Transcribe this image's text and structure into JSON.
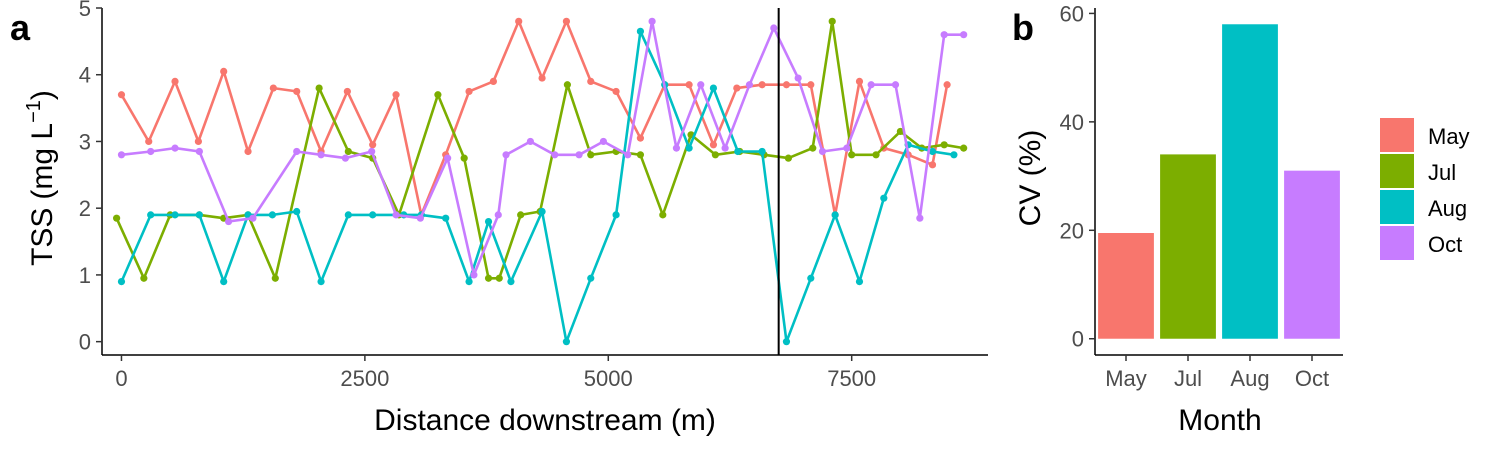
{
  "chart_data": [
    {
      "panel": "a",
      "type": "line",
      "xlabel": "Distance downstream (m)",
      "ylabel_main": "TSS",
      "ylabel_unit_prefix": "(mg L",
      "ylabel_unit_exp": "−1",
      "ylabel_unit_suffix": ")",
      "xlim": [
        -200,
        8900
      ],
      "ylim": [
        -0.2,
        5
      ],
      "x_ticks": [
        0,
        2500,
        5000,
        7500
      ],
      "x_tick_labels": [
        "0",
        "2500",
        "5000",
        "7500"
      ],
      "y_ticks": [
        0,
        1,
        2,
        3,
        4,
        5
      ],
      "y_tick_labels": [
        "0",
        "1",
        "2",
        "3",
        "4",
        "5"
      ],
      "vline_x": 6750,
      "series": [
        {
          "name": "May",
          "color": "#F8766D",
          "x": [
            0,
            280,
            550,
            790,
            1050,
            1300,
            1560,
            1800,
            2050,
            2320,
            2580,
            2820,
            3080,
            3330,
            3570,
            3820,
            4080,
            4320,
            4570,
            4820,
            5080,
            5330,
            5580,
            5830,
            6080,
            6320,
            6580,
            6830,
            7080,
            7330,
            7580,
            7830,
            8080,
            8330,
            8480
          ],
          "y": [
            3.7,
            3.0,
            3.9,
            3.0,
            4.05,
            2.85,
            3.8,
            3.75,
            2.85,
            3.75,
            2.95,
            3.7,
            1.9,
            2.8,
            3.75,
            3.9,
            4.8,
            3.95,
            4.8,
            3.9,
            3.75,
            3.05,
            3.85,
            3.85,
            2.95,
            3.8,
            3.85,
            3.85,
            3.85,
            1.9,
            3.9,
            2.9,
            2.8,
            2.65,
            3.85
          ]
        },
        {
          "name": "Jul",
          "color": "#7CAE00",
          "x": [
            -50,
            230,
            500,
            800,
            1050,
            1300,
            1580,
            2030,
            2330,
            2580,
            2850,
            3250,
            3520,
            3770,
            3880,
            4100,
            4300,
            4580,
            4820,
            5080,
            5330,
            5560,
            5850,
            6100,
            6350,
            6600,
            6850,
            7100,
            7300,
            7500,
            7750,
            8000,
            8220,
            8450,
            8650
          ],
          "y": [
            1.85,
            0.95,
            1.9,
            1.9,
            1.85,
            1.9,
            0.95,
            3.8,
            2.85,
            2.75,
            1.9,
            3.7,
            2.75,
            0.95,
            0.95,
            1.9,
            1.95,
            3.85,
            2.8,
            2.85,
            2.8,
            1.9,
            3.1,
            2.8,
            2.85,
            2.8,
            2.75,
            2.9,
            4.8,
            2.8,
            2.8,
            3.15,
            2.9,
            2.95,
            2.9
          ]
        },
        {
          "name": "Aug",
          "color": "#00BFC4",
          "x": [
            0,
            300,
            550,
            800,
            1050,
            1300,
            1550,
            1800,
            2050,
            2330,
            2580,
            2900,
            3080,
            3330,
            3570,
            3770,
            4000,
            4320,
            4570,
            4820,
            5080,
            5330,
            5580,
            5830,
            6080,
            6330,
            6580,
            6830,
            7080,
            7330,
            7580,
            7830,
            8080,
            8330,
            8550
          ],
          "y": [
            0.9,
            1.9,
            1.9,
            1.9,
            0.9,
            1.9,
            1.9,
            1.95,
            0.9,
            1.9,
            1.9,
            1.9,
            1.9,
            1.85,
            0.9,
            1.8,
            0.9,
            1.95,
            0.0,
            0.95,
            1.9,
            4.65,
            3.85,
            2.9,
            3.8,
            2.85,
            2.85,
            0.0,
            0.95,
            1.9,
            0.9,
            2.15,
            2.95,
            2.85,
            2.8
          ]
        },
        {
          "name": "Oct",
          "color": "#C77CFF",
          "x": [
            0,
            300,
            550,
            800,
            1100,
            1350,
            1800,
            2050,
            2300,
            2570,
            2820,
            3070,
            3350,
            3620,
            3870,
            3950,
            4200,
            4450,
            4700,
            4950,
            5200,
            5450,
            5700,
            5950,
            6200,
            6450,
            6700,
            6950,
            7200,
            7450,
            7700,
            7950,
            8200,
            8450,
            8650
          ],
          "y": [
            2.8,
            2.85,
            2.9,
            2.85,
            1.8,
            1.85,
            2.85,
            2.8,
            2.75,
            2.85,
            1.9,
            1.85,
            2.75,
            1.0,
            1.9,
            2.8,
            3.0,
            2.8,
            2.8,
            3.0,
            2.8,
            4.8,
            2.9,
            3.85,
            2.9,
            3.85,
            4.7,
            3.95,
            2.85,
            2.9,
            3.85,
            3.85,
            1.85,
            4.6,
            4.6
          ]
        }
      ]
    },
    {
      "panel": "b",
      "type": "bar",
      "xlabel": "Month",
      "ylabel": "CV (%)",
      "categories": [
        "May",
        "Jul",
        "Aug",
        "Oct"
      ],
      "values": [
        19.5,
        34,
        58,
        31
      ],
      "colors": [
        "#F8766D",
        "#7CAE00",
        "#00BFC4",
        "#C77CFF"
      ],
      "ylim": [
        -3,
        61
      ],
      "y_ticks": [
        0,
        20,
        40,
        60
      ],
      "y_tick_labels": [
        "0",
        "20",
        "40",
        "60"
      ],
      "legend": {
        "placement": "right",
        "entries": [
          {
            "label": "May",
            "color": "#F8766D"
          },
          {
            "label": "Jul",
            "color": "#7CAE00"
          },
          {
            "label": "Aug",
            "color": "#00BFC4"
          },
          {
            "label": "Oct",
            "color": "#C77CFF"
          }
        ]
      }
    }
  ]
}
